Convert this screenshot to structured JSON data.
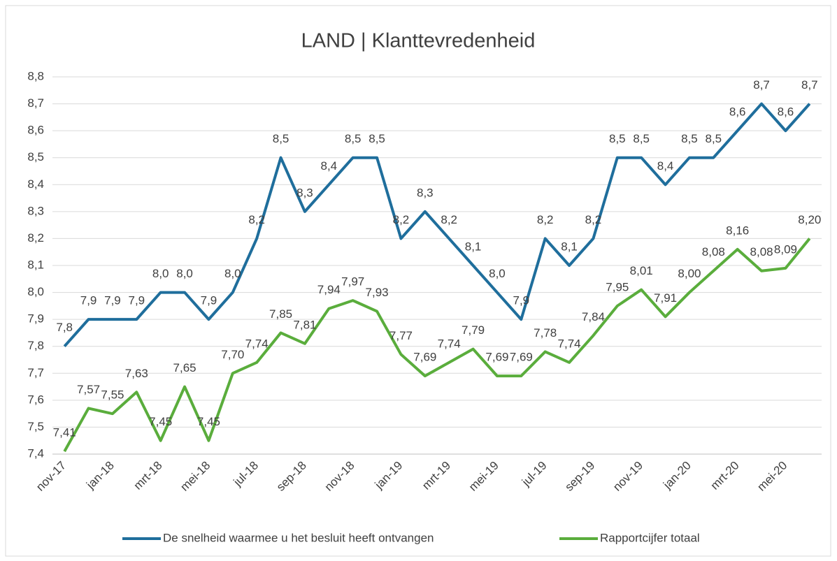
{
  "chart_data": {
    "type": "line",
    "title": "LAND | Klanttevredenheid",
    "categories": [
      "nov-17",
      null,
      "jan-18",
      null,
      "mrt-18",
      null,
      "mei-18",
      null,
      "jul-18",
      null,
      "sep-18",
      null,
      "nov-18",
      null,
      "jan-19",
      null,
      "mrt-19",
      null,
      "mei-19",
      null,
      "jul-19",
      null,
      "sep-19",
      null,
      "nov-19",
      null,
      "jan-20",
      null,
      "mrt-20",
      null,
      "mei-20",
      null
    ],
    "series": [
      {
        "name": "De snelheid waarmee u het besluit heeft ontvangen",
        "color": "#1f6e9c",
        "values": [
          7.8,
          7.9,
          7.9,
          7.9,
          8.0,
          8.0,
          7.9,
          8.0,
          8.2,
          8.5,
          8.3,
          8.4,
          8.5,
          8.5,
          8.2,
          8.3,
          8.2,
          8.1,
          8.0,
          7.9,
          8.2,
          8.1,
          8.2,
          8.5,
          8.5,
          8.4,
          8.5,
          8.5,
          8.6,
          8.7,
          8.6,
          8.7
        ],
        "value_labels": [
          "7,8",
          "7,9",
          "7,9",
          "7,9",
          "8,0",
          "8,0",
          "7,9",
          "8,0",
          "8,2",
          "8,5",
          "8,3",
          "8,4",
          "8,5",
          "8,5",
          "8,2",
          "8,3",
          "8,2",
          "8,1",
          "8,0",
          "7,9",
          "8,2",
          "8,1",
          "8,2",
          "8,5",
          "8,5",
          "8,4",
          "8,5",
          "8,5",
          "8,6",
          "8,7",
          "8,6",
          "8,7"
        ]
      },
      {
        "name": "Rapportcijfer totaal",
        "color": "#5aad3c",
        "values": [
          7.41,
          7.57,
          7.55,
          7.63,
          7.45,
          7.65,
          7.45,
          7.7,
          7.74,
          7.85,
          7.81,
          7.94,
          7.97,
          7.93,
          7.77,
          7.69,
          7.74,
          7.79,
          7.69,
          7.69,
          7.78,
          7.74,
          7.84,
          7.95,
          8.01,
          7.91,
          8.0,
          8.08,
          8.16,
          8.08,
          8.09,
          8.2
        ],
        "value_labels": [
          "7,41",
          "7,57",
          "7,55",
          "7,63",
          "7,45",
          "7,65",
          "7,45",
          "7,70",
          "7,74",
          "7,85",
          "7,81",
          "7,94",
          "7,97",
          "7,93",
          "7,77",
          "7,69",
          "7,74",
          "7,79",
          "7,69",
          "7,69",
          "7,78",
          "7,74",
          "7,84",
          "7,95",
          "8,01",
          "7,91",
          "8,00",
          "8,08",
          "8,16",
          "8,08",
          "8,09",
          "8,20"
        ]
      }
    ],
    "ylim": [
      7.4,
      8.8
    ],
    "yticks": [
      {
        "value": 7.4,
        "label": "7,4"
      },
      {
        "value": 7.5,
        "label": "7,5"
      },
      {
        "value": 7.6,
        "label": "7,6"
      },
      {
        "value": 7.7,
        "label": "7,7"
      },
      {
        "value": 7.8,
        "label": "7,8"
      },
      {
        "value": 7.9,
        "label": "7,9"
      },
      {
        "value": 8.0,
        "label": "8,0"
      },
      {
        "value": 8.1,
        "label": "8,1"
      },
      {
        "value": 8.2,
        "label": "8,2"
      },
      {
        "value": 8.3,
        "label": "8,3"
      },
      {
        "value": 8.4,
        "label": "8,4"
      },
      {
        "value": 8.5,
        "label": "8,5"
      },
      {
        "value": 8.6,
        "label": "8,6"
      },
      {
        "value": 8.7,
        "label": "8,7"
      },
      {
        "value": 8.8,
        "label": "8,8"
      }
    ],
    "grid": true,
    "legend": "bottom"
  }
}
